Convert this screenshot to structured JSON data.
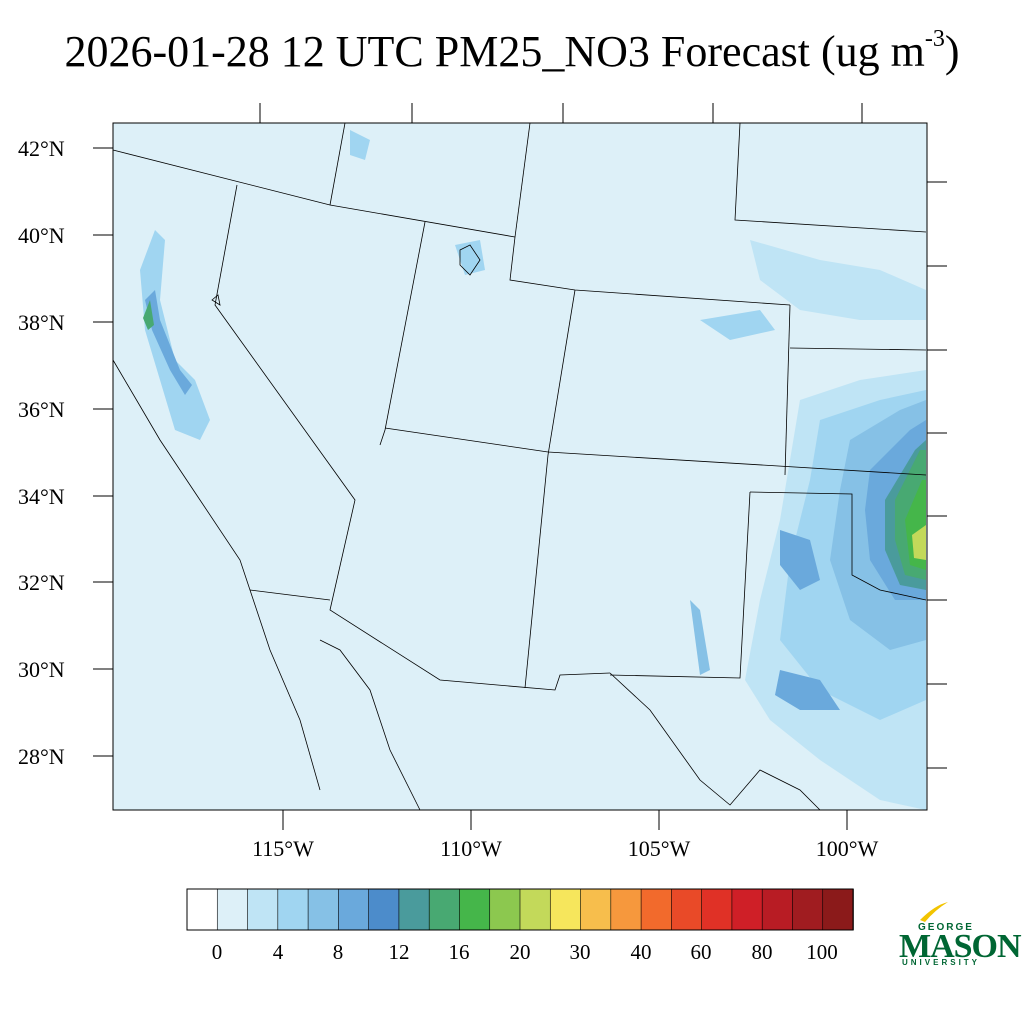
{
  "title": {
    "main": "2026-01-28 12 UTC PM25_NO3 Forecast (ug m",
    "exponent": "-3",
    "close": ")"
  },
  "map": {
    "background_color": "#ddf0f8",
    "lat_labels": [
      "42°N",
      "40°N",
      "38°N",
      "36°N",
      "34°N",
      "32°N",
      "30°N",
      "28°N"
    ],
    "lon_labels": [
      "115°W",
      "110°W",
      "105°W",
      "100°W"
    ]
  },
  "colorbar": {
    "labels": [
      "0",
      "4",
      "8",
      "12",
      "16",
      "20",
      "30",
      "40",
      "60",
      "80",
      "100"
    ],
    "colors": [
      "#ffffff",
      "#ddf0f8",
      "#bfe4f5",
      "#a0d5f1",
      "#86c1e6",
      "#6aa9dc",
      "#4c8ccb",
      "#4a9b9c",
      "#48a972",
      "#45b64a",
      "#8cc84f",
      "#c3d95a",
      "#f6e65c",
      "#f7be4c",
      "#f6983d",
      "#f26a2c",
      "#e94a28",
      "#e03126",
      "#cf1f27",
      "#b81c24",
      "#a01c20",
      "#8b1a1a"
    ]
  },
  "logo": {
    "line1": "GEORGE",
    "line2": "MASON",
    "line3": "UNIVERSITY"
  }
}
